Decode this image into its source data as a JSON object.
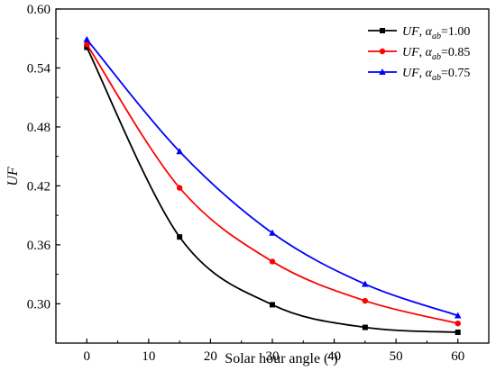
{
  "chart_data": {
    "type": "line",
    "xlabel": "Solar hour angle (°)",
    "xlabel_main": "Solar hour angle (",
    "xlabel_sup": "o",
    "xlabel_end": ")",
    "ylabel": "UF",
    "xlim": [
      -5,
      65
    ],
    "ylim": [
      0.26,
      0.6
    ],
    "xticks": [
      0,
      10,
      20,
      30,
      40,
      50,
      60
    ],
    "yticks": [
      0.3,
      0.36,
      0.42,
      0.48,
      0.54,
      0.6
    ],
    "ytick_labels": [
      "0.30",
      "0.36",
      "0.42",
      "0.48",
      "0.54",
      "0.60"
    ],
    "legend_position": "top-right",
    "grid": false,
    "series": [
      {
        "name": "UF, αab=1.00",
        "legend_var": "UF",
        "legend_sub": "ab",
        "legend_val": "=1.00",
        "color": "#000000",
        "marker": "square",
        "x": [
          0,
          15,
          30,
          45,
          60
        ],
        "y": [
          0.561,
          0.368,
          0.299,
          0.276,
          0.271
        ]
      },
      {
        "name": "UF, αab=0.85",
        "legend_var": "UF",
        "legend_sub": "ab",
        "legend_val": "=0.85",
        "color": "#ff0000",
        "marker": "circle",
        "x": [
          0,
          15,
          30,
          45,
          60
        ],
        "y": [
          0.564,
          0.418,
          0.343,
          0.303,
          0.28
        ]
      },
      {
        "name": "UF, αab=0.75",
        "legend_var": "UF",
        "legend_sub": "ab",
        "legend_val": "=0.75",
        "color": "#0000ff",
        "marker": "triangle",
        "x": [
          0,
          15,
          30,
          45,
          60
        ],
        "y": [
          0.569,
          0.455,
          0.372,
          0.32,
          0.288
        ]
      }
    ]
  }
}
